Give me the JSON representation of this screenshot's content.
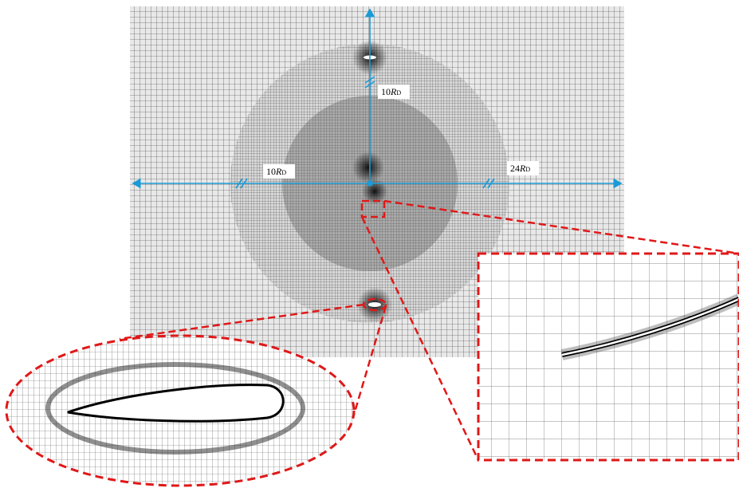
{
  "labels": [
    {
      "number": "10",
      "symbol": "R",
      "subscript": "D"
    },
    {
      "number": "10",
      "symbol": "R",
      "subscript": "D"
    },
    {
      "number": "24",
      "symbol": "R",
      "subscript": "D"
    }
  ]
}
